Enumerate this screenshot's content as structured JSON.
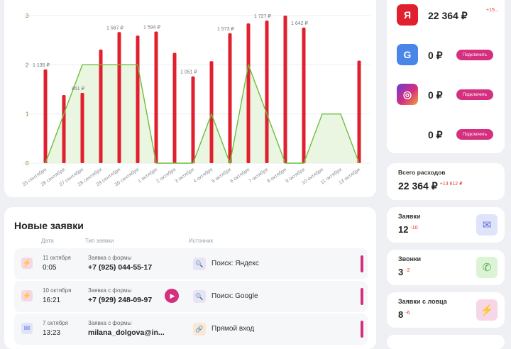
{
  "chart_data": {
    "type": "bar",
    "categories": [
      "25 сентября",
      "26 сентября",
      "27 сентября",
      "28 сентября",
      "29 сентября",
      "30 сентября",
      "1 октября",
      "2 октября",
      "3 октября",
      "4 октября",
      "5 октября",
      "6 октября",
      "7 октября",
      "8 октября",
      "9 октября",
      "10 октября",
      "11 октября",
      "13 октября"
    ],
    "bars": [
      1135,
      825,
      851,
      1376,
      1587,
      1544,
      1594,
      1336,
      1051,
      1235,
      1573,
      1693,
      1727,
      1787,
      1642,
      null,
      null,
      1241
    ],
    "bar_ylim": [
      0,
      1787
    ],
    "line": [
      0,
      1,
      2,
      2,
      2,
      2,
      0,
      0,
      0,
      1,
      0,
      2,
      1,
      0,
      0,
      1,
      1,
      0
    ],
    "line_ylim": [
      0,
      3
    ],
    "y_ticks": [
      "0",
      "1",
      "2",
      "3"
    ],
    "data_labels": [
      {
        "index": 0,
        "text": "1 135 ₽"
      },
      {
        "index": 2,
        "text": "851 ₽"
      },
      {
        "index": 4,
        "text": "1 587 ₽"
      },
      {
        "index": 6,
        "text": "1 594 ₽"
      },
      {
        "index": 8,
        "text": "1 051 ₽"
      },
      {
        "index": 10,
        "text": "1 573 ₽"
      },
      {
        "index": 12,
        "text": "1 727 ₽"
      },
      {
        "index": 14,
        "text": "1 642 ₽"
      }
    ],
    "colors": {
      "bar": "#e0202e",
      "line": "#6abf3a",
      "line_fill": "#e6f4db"
    }
  },
  "leads": {
    "title": "Новые заявки",
    "headers": {
      "date": "Дата",
      "type": "Тип заявки",
      "source": "Источник"
    },
    "rows": [
      {
        "icon": "lightning-icon",
        "date": "11 октября",
        "time": "0:05",
        "type": "Заявка с формы",
        "contact": "+7 (925) 044-55-17",
        "source": "Поиск: Яндекс",
        "has_play": false
      },
      {
        "icon": "lightning-icon",
        "date": "10 октября",
        "time": "16:21",
        "type": "Заявка с формы",
        "contact": "+7 (929) 248-09-97",
        "source": "Поиск: Google",
        "has_play": true
      },
      {
        "icon": "envelope-icon",
        "date": "7 октября",
        "time": "13:23",
        "type": "Заявка с формы",
        "contact": "milana_dolgova@in...",
        "source": "Прямой вход",
        "has_play": false
      }
    ]
  },
  "sources": {
    "items": [
      {
        "name": "yandex-icon",
        "logo": "Я",
        "amount": "22 364 ₽",
        "delta": "+15...",
        "button": ""
      },
      {
        "name": "google-icon",
        "logo": "G",
        "amount": "0 ₽",
        "delta": "",
        "button": "Подключить"
      },
      {
        "name": "instagram-icon",
        "logo": "◎",
        "amount": "0 ₽",
        "delta": "",
        "button": "Подключить"
      },
      {
        "name": "vk-icon",
        "logo": "",
        "amount": "0 ₽",
        "delta": "",
        "button": "Подключить"
      }
    ]
  },
  "total_spend": {
    "label": "Всего расходов",
    "value": "22 364 ₽",
    "delta": "+13 612 ₽"
  },
  "stats": [
    {
      "label": "Заявки",
      "value": "12",
      "delta": "-10",
      "icon": "envelope-icon"
    },
    {
      "label": "Звонки",
      "value": "3",
      "delta": "-2",
      "icon": "phone-icon"
    },
    {
      "label": "Заявки с ловца",
      "value": "8",
      "delta": "-6",
      "icon": "lightning-icon"
    }
  ]
}
